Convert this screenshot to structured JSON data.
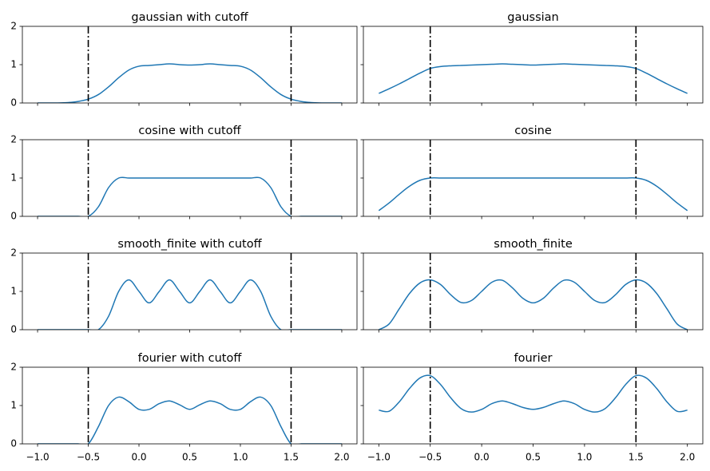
{
  "chart_data": [
    {
      "type": "line",
      "title": "gaussian with cutoff",
      "color": "#1f77b4",
      "x": [
        -1.0,
        -0.9,
        -0.8,
        -0.7,
        -0.6,
        -0.5,
        -0.4,
        -0.3,
        -0.2,
        -0.1,
        0.0,
        0.1,
        0.2,
        0.3,
        0.4,
        0.5,
        0.6,
        0.7,
        0.8,
        0.9,
        1.0,
        1.1,
        1.2,
        1.3,
        1.4,
        1.5,
        1.6,
        1.7,
        1.8,
        1.9,
        2.0
      ],
      "values": [
        0,
        0,
        0,
        0.01,
        0.04,
        0.1,
        0.22,
        0.42,
        0.66,
        0.86,
        0.96,
        0.98,
        1.0,
        1.02,
        1.0,
        0.99,
        1.0,
        1.02,
        1.0,
        0.98,
        0.96,
        0.86,
        0.66,
        0.42,
        0.22,
        0.1,
        0.04,
        0.01,
        0,
        0,
        0
      ],
      "vlines": [
        -0.5,
        1.5
      ],
      "xlim": [
        -1.15,
        2.15
      ],
      "ylim": [
        0,
        2
      ],
      "yticks": [
        0,
        1,
        2
      ],
      "xticks": [
        {
          "value": -1,
          "label": "−1.0"
        },
        {
          "value": -0.5,
          "label": "−0.5"
        },
        {
          "value": 0,
          "label": "0.0"
        },
        0.5,
        {
          "value": 1,
          "label": "1.0"
        },
        1.5,
        {
          "value": 2,
          "label": "2.0"
        }
      ],
      "show_xticklabels": false,
      "show_yticklabels": true
    },
    {
      "type": "line",
      "title": "gaussian",
      "color": "#1f77b4",
      "x": [
        -1.0,
        -0.9,
        -0.8,
        -0.7,
        -0.6,
        -0.5,
        -0.4,
        -0.3,
        -0.2,
        -0.1,
        0.0,
        0.1,
        0.2,
        0.3,
        0.4,
        0.5,
        0.6,
        0.7,
        0.8,
        0.9,
        1.0,
        1.1,
        1.2,
        1.3,
        1.4,
        1.5,
        1.6,
        1.7,
        1.8,
        1.9,
        2.0
      ],
      "values": [
        0.25,
        0.37,
        0.5,
        0.64,
        0.78,
        0.9,
        0.95,
        0.97,
        0.98,
        0.99,
        1.0,
        1.01,
        1.02,
        1.01,
        1.0,
        0.99,
        1.0,
        1.01,
        1.02,
        1.01,
        1.0,
        0.99,
        0.98,
        0.97,
        0.95,
        0.9,
        0.78,
        0.64,
        0.5,
        0.37,
        0.25
      ],
      "vlines": [
        -0.5,
        1.5
      ],
      "xlim": [
        -1.15,
        2.15
      ],
      "ylim": [
        0,
        2
      ],
      "yticks": [
        0,
        1,
        2
      ],
      "xticks": [
        {
          "value": -1,
          "label": "−1.0"
        },
        {
          "value": -0.5,
          "label": "−0.5"
        },
        {
          "value": 0,
          "label": "0.0"
        },
        0.5,
        {
          "value": 1,
          "label": "1.0"
        },
        1.5,
        {
          "value": 2,
          "label": "2.0"
        }
      ],
      "show_xticklabels": false,
      "show_yticklabels": false
    },
    {
      "type": "line",
      "title": "cosine with cutoff",
      "color": "#1f77b4",
      "x": [
        -1.0,
        -0.9,
        -0.8,
        -0.7,
        -0.6,
        -0.5,
        -0.4,
        -0.3,
        -0.2,
        -0.1,
        0.0,
        0.1,
        0.2,
        0.3,
        0.4,
        0.5,
        0.6,
        0.7,
        0.8,
        0.9,
        1.0,
        1.1,
        1.2,
        1.3,
        1.4,
        1.5,
        1.6,
        1.7,
        1.8,
        1.9,
        2.0
      ],
      "values": [
        0,
        0,
        0,
        0,
        0,
        0,
        0.25,
        0.75,
        1,
        1,
        1,
        1,
        1,
        1,
        1,
        1,
        1,
        1,
        1,
        1,
        1,
        1,
        1,
        0.75,
        0.25,
        0,
        0,
        0,
        0,
        0,
        0
      ],
      "vlines": [
        -0.5,
        1.5
      ],
      "xlim": [
        -1.15,
        2.15
      ],
      "ylim": [
        0,
        2
      ],
      "yticks": [
        0,
        1,
        2
      ],
      "xticks": [
        {
          "value": -1,
          "label": "−1.0"
        },
        {
          "value": -0.5,
          "label": "−0.5"
        },
        {
          "value": 0,
          "label": "0.0"
        },
        0.5,
        {
          "value": 1,
          "label": "1.0"
        },
        1.5,
        {
          "value": 2,
          "label": "2.0"
        }
      ],
      "show_xticklabels": false,
      "show_yticklabels": true
    },
    {
      "type": "line",
      "title": "cosine",
      "color": "#1f77b4",
      "x": [
        -1.0,
        -0.9,
        -0.8,
        -0.7,
        -0.6,
        -0.5,
        -0.4,
        -0.3,
        -0.2,
        -0.1,
        0.0,
        0.1,
        0.2,
        0.3,
        0.4,
        0.5,
        0.6,
        0.7,
        0.8,
        0.9,
        1.0,
        1.1,
        1.2,
        1.3,
        1.4,
        1.5,
        1.6,
        1.7,
        1.8,
        1.9,
        2.0
      ],
      "values": [
        0.15,
        0.35,
        0.58,
        0.79,
        0.94,
        1,
        1,
        1,
        1,
        1,
        1,
        1,
        1,
        1,
        1,
        1,
        1,
        1,
        1,
        1,
        1,
        1,
        1,
        1,
        1,
        1,
        0.94,
        0.79,
        0.58,
        0.35,
        0.15
      ],
      "vlines": [
        -0.5,
        1.5
      ],
      "xlim": [
        -1.15,
        2.15
      ],
      "ylim": [
        0,
        2
      ],
      "yticks": [
        0,
        1,
        2
      ],
      "xticks": [
        {
          "value": -1,
          "label": "−1.0"
        },
        {
          "value": -0.5,
          "label": "−0.5"
        },
        {
          "value": 0,
          "label": "0.0"
        },
        0.5,
        {
          "value": 1,
          "label": "1.0"
        },
        1.5,
        {
          "value": 2,
          "label": "2.0"
        }
      ],
      "show_xticklabels": false,
      "show_yticklabels": false
    },
    {
      "type": "line",
      "title": "smooth_finite with cutoff",
      "color": "#1f77b4",
      "x": [
        -1.0,
        -0.9,
        -0.8,
        -0.7,
        -0.6,
        -0.5,
        -0.4,
        -0.3,
        -0.2,
        -0.1,
        0.0,
        0.1,
        0.2,
        0.3,
        0.4,
        0.5,
        0.6,
        0.7,
        0.8,
        0.9,
        1.0,
        1.1,
        1.2,
        1.3,
        1.4,
        1.5,
        1.6,
        1.7,
        1.8,
        1.9,
        2.0
      ],
      "values": [
        0,
        0,
        0,
        0,
        0,
        0,
        0,
        0.35,
        1.0,
        1.3,
        1.0,
        0.7,
        1.0,
        1.3,
        1.0,
        0.7,
        1.0,
        1.3,
        1.0,
        0.7,
        1.0,
        1.3,
        1.0,
        0.35,
        0,
        0,
        0,
        0,
        0,
        0,
        0
      ],
      "vlines": [
        -0.5,
        1.5
      ],
      "xlim": [
        -1.15,
        2.15
      ],
      "ylim": [
        0,
        2
      ],
      "yticks": [
        0,
        1,
        2
      ],
      "xticks": [
        {
          "value": -1,
          "label": "−1.0"
        },
        {
          "value": -0.5,
          "label": "−0.5"
        },
        {
          "value": 0,
          "label": "0.0"
        },
        0.5,
        {
          "value": 1,
          "label": "1.0"
        },
        1.5,
        {
          "value": 2,
          "label": "2.0"
        }
      ],
      "show_xticklabels": false,
      "show_yticklabels": true
    },
    {
      "type": "line",
      "title": "smooth_finite",
      "color": "#1f77b4",
      "x": [
        -1.0,
        -0.9,
        -0.8,
        -0.7,
        -0.6,
        -0.5,
        -0.4,
        -0.3,
        -0.2,
        -0.1,
        0.0,
        0.1,
        0.2,
        0.3,
        0.4,
        0.5,
        0.6,
        0.7,
        0.8,
        0.9,
        1.0,
        1.1,
        1.2,
        1.3,
        1.4,
        1.5,
        1.6,
        1.7,
        1.8,
        1.9,
        2.0
      ],
      "values": [
        0,
        0.15,
        0.55,
        0.95,
        1.22,
        1.3,
        1.18,
        0.91,
        0.71,
        0.76,
        1.0,
        1.24,
        1.29,
        1.09,
        0.82,
        0.7,
        0.82,
        1.09,
        1.29,
        1.24,
        1.0,
        0.76,
        0.71,
        0.91,
        1.18,
        1.3,
        1.22,
        0.95,
        0.55,
        0.15,
        0
      ],
      "vlines": [
        -0.5,
        1.5
      ],
      "xlim": [
        -1.15,
        2.15
      ],
      "ylim": [
        0,
        2
      ],
      "yticks": [
        0,
        1,
        2
      ],
      "xticks": [
        {
          "value": -1,
          "label": "−1.0"
        },
        {
          "value": -0.5,
          "label": "−0.5"
        },
        {
          "value": 0,
          "label": "0.0"
        },
        0.5,
        {
          "value": 1,
          "label": "1.0"
        },
        1.5,
        {
          "value": 2,
          "label": "2.0"
        }
      ],
      "show_xticklabels": false,
      "show_yticklabels": false
    },
    {
      "type": "line",
      "title": "fourier with cutoff",
      "color": "#1f77b4",
      "x": [
        -1.0,
        -0.9,
        -0.8,
        -0.7,
        -0.6,
        -0.5,
        -0.4,
        -0.3,
        -0.2,
        -0.1,
        0.0,
        0.1,
        0.2,
        0.3,
        0.4,
        0.5,
        0.6,
        0.7,
        0.8,
        0.9,
        1.0,
        1.1,
        1.2,
        1.3,
        1.4,
        1.5,
        1.6,
        1.7,
        1.8,
        1.9,
        2.0
      ],
      "values": [
        0,
        0,
        0,
        0,
        0,
        0,
        0.45,
        1.0,
        1.22,
        1.1,
        0.9,
        0.9,
        1.05,
        1.12,
        1.02,
        0.9,
        1.02,
        1.12,
        1.05,
        0.9,
        0.9,
        1.1,
        1.22,
        1.0,
        0.45,
        0,
        0,
        0,
        0,
        0,
        0
      ],
      "vlines": [
        -0.5,
        1.5
      ],
      "xlim": [
        -1.15,
        2.15
      ],
      "ylim": [
        0,
        2
      ],
      "yticks": [
        0,
        1,
        2
      ],
      "xticks": [
        {
          "value": -1,
          "label": "−1.0"
        },
        {
          "value": -0.5,
          "label": "−0.5"
        },
        {
          "value": 0,
          "label": "0.0"
        },
        0.5,
        {
          "value": 1,
          "label": "1.0"
        },
        1.5,
        {
          "value": 2,
          "label": "2.0"
        }
      ],
      "show_xticklabels": true,
      "show_yticklabels": true
    },
    {
      "type": "line",
      "title": "fourier",
      "color": "#1f77b4",
      "x": [
        -1.0,
        -0.9,
        -0.8,
        -0.7,
        -0.6,
        -0.5,
        -0.4,
        -0.3,
        -0.2,
        -0.1,
        0.0,
        0.1,
        0.2,
        0.3,
        0.4,
        0.5,
        0.6,
        0.7,
        0.8,
        0.9,
        1.0,
        1.1,
        1.2,
        1.3,
        1.4,
        1.5,
        1.6,
        1.7,
        1.8,
        1.9,
        2.0
      ],
      "values": [
        0.88,
        0.85,
        1.1,
        1.45,
        1.72,
        1.78,
        1.55,
        1.2,
        0.92,
        0.83,
        0.9,
        1.05,
        1.12,
        1.05,
        0.95,
        0.9,
        0.95,
        1.05,
        1.12,
        1.05,
        0.9,
        0.83,
        0.92,
        1.2,
        1.55,
        1.78,
        1.72,
        1.45,
        1.1,
        0.85,
        0.88
      ],
      "vlines": [
        -0.5,
        1.5
      ],
      "xlim": [
        -1.15,
        2.15
      ],
      "ylim": [
        0,
        2
      ],
      "yticks": [
        0,
        1,
        2
      ],
      "xticks": [
        {
          "value": -1,
          "label": "−1.0"
        },
        {
          "value": -0.5,
          "label": "−0.5"
        },
        {
          "value": 0,
          "label": "0.0"
        },
        0.5,
        {
          "value": 1,
          "label": "1.0"
        },
        1.5,
        {
          "value": 2,
          "label": "2.0"
        }
      ],
      "show_xticklabels": true,
      "show_yticklabels": false
    }
  ]
}
